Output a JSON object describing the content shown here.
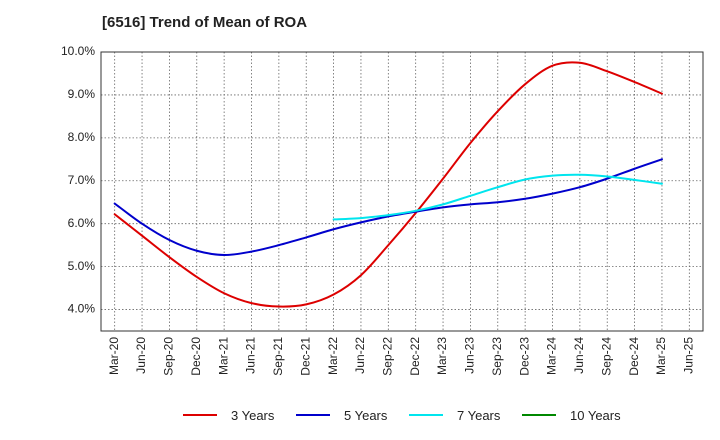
{
  "chart_data": {
    "type": "line",
    "title": "[6516]  Trend of Mean of ROA",
    "xlabel": "",
    "ylabel": "",
    "ylim": [
      3.5,
      10.0
    ],
    "y_ticks": [
      4.0,
      5.0,
      6.0,
      7.0,
      8.0,
      9.0,
      10.0
    ],
    "y_tick_labels": [
      "4.0%",
      "5.0%",
      "6.0%",
      "7.0%",
      "8.0%",
      "9.0%",
      "10.0%"
    ],
    "categories": [
      "Mar-20",
      "Jun-20",
      "Sep-20",
      "Dec-20",
      "Mar-21",
      "Jun-21",
      "Sep-21",
      "Dec-21",
      "Mar-22",
      "Jun-22",
      "Sep-22",
      "Dec-22",
      "Mar-23",
      "Jun-23",
      "Sep-23",
      "Dec-23",
      "Mar-24",
      "Jun-24",
      "Sep-24",
      "Dec-24",
      "Mar-25",
      "Jun-25"
    ],
    "grid": true,
    "legend_position": "bottom",
    "series": [
      {
        "name": "3 Years",
        "color": "#dd0000",
        "values": [
          6.22,
          5.72,
          5.22,
          4.76,
          4.38,
          4.15,
          4.07,
          4.12,
          4.35,
          4.8,
          5.5,
          6.25,
          7.05,
          7.88,
          8.62,
          9.25,
          9.68,
          9.75,
          9.55,
          9.3,
          9.03,
          null
        ]
      },
      {
        "name": "5 Years",
        "color": "#0000cc",
        "values": [
          6.47,
          6.0,
          5.62,
          5.37,
          5.27,
          5.35,
          5.5,
          5.68,
          5.87,
          6.03,
          6.17,
          6.28,
          6.38,
          6.45,
          6.5,
          6.58,
          6.7,
          6.85,
          7.05,
          7.28,
          7.5,
          null
        ]
      },
      {
        "name": "7 Years",
        "color": "#00e5ee",
        "values": [
          null,
          null,
          null,
          null,
          null,
          null,
          null,
          null,
          6.1,
          6.13,
          6.2,
          6.3,
          6.45,
          6.65,
          6.85,
          7.03,
          7.12,
          7.14,
          7.1,
          7.02,
          6.93,
          null
        ]
      },
      {
        "name": "10 Years",
        "color": "#008800",
        "values": [
          null,
          null,
          null,
          null,
          null,
          null,
          null,
          null,
          null,
          null,
          null,
          null,
          null,
          null,
          null,
          null,
          null,
          null,
          null,
          null,
          null,
          null
        ]
      }
    ]
  }
}
